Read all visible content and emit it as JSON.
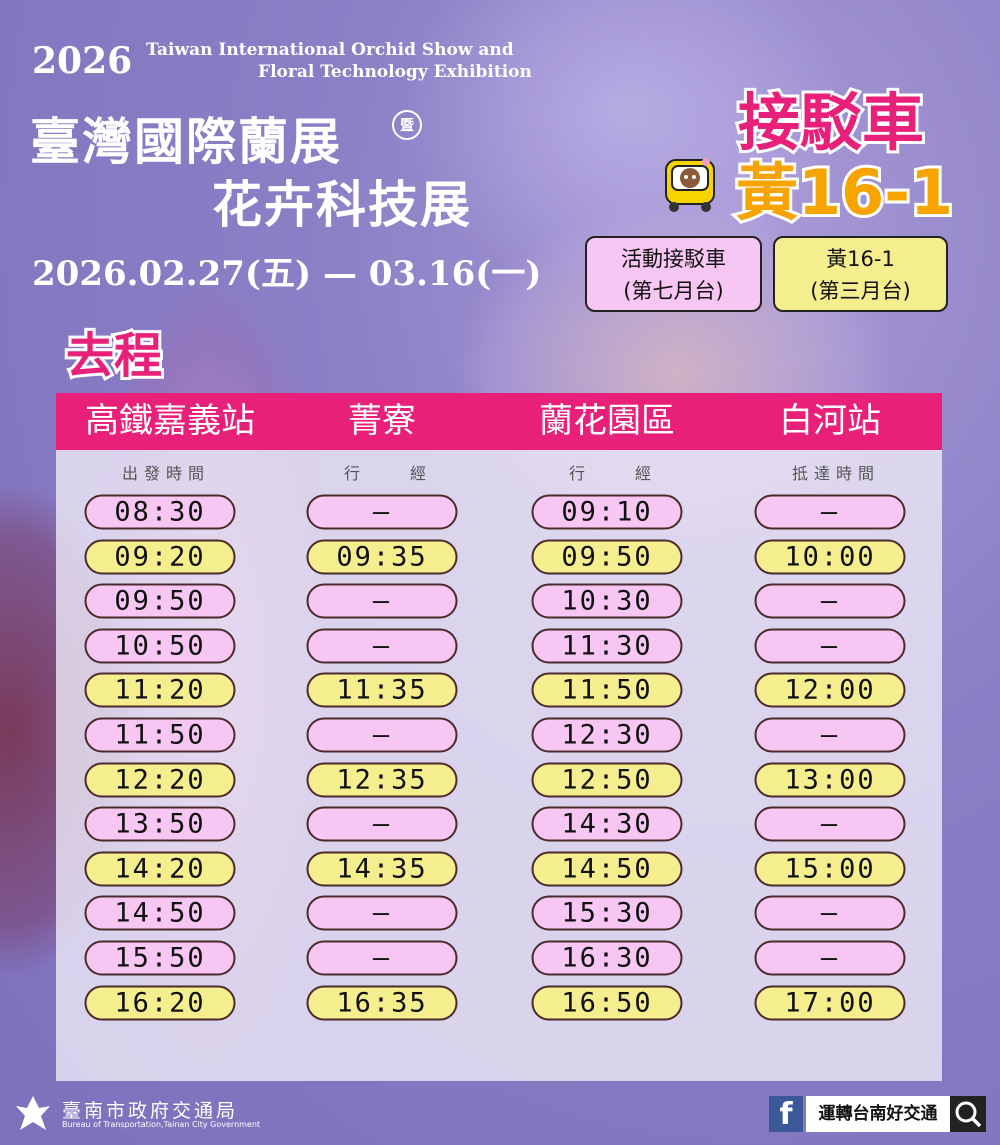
{
  "header": {
    "year": "2026",
    "title_en_line1": "Taiwan International Orchid Show and",
    "title_en_line2": "Floral Technology Exhibition",
    "title_zh_line1": "臺灣國際蘭展",
    "conjunction": "暨",
    "title_zh_line2": "花卉科技展",
    "dates": "2026.02.27(五) — 03.16(一)"
  },
  "shuttle": {
    "title": "接駁車",
    "route": "黃16-1",
    "icon": "bus-mascot-icon",
    "boxes": [
      {
        "line1": "活動接駁車",
        "line2": "(第七月台)",
        "color": "#f8c6f2"
      },
      {
        "line1": "黃16-1",
        "line2": "(第三月台)",
        "color": "#f5ee8e"
      }
    ]
  },
  "direction": "去程",
  "table": {
    "headers": [
      "高鐵嘉義站",
      "菁寮",
      "蘭花園區",
      "白河站"
    ],
    "subheaders": [
      "出發時間",
      "行　　經",
      "行　　經",
      "抵達時間"
    ],
    "colors": {
      "header": "#e8207a",
      "event_shuttle": "#f8c6f2",
      "route_bus": "#f5ee8e"
    },
    "rows": [
      {
        "type": "event_shuttle",
        "times": [
          "08:30",
          "—",
          "09:10",
          "—"
        ]
      },
      {
        "type": "route_bus",
        "times": [
          "09:20",
          "09:35",
          "09:50",
          "10:00"
        ]
      },
      {
        "type": "event_shuttle",
        "times": [
          "09:50",
          "—",
          "10:30",
          "—"
        ]
      },
      {
        "type": "event_shuttle",
        "times": [
          "10:50",
          "—",
          "11:30",
          "—"
        ]
      },
      {
        "type": "route_bus",
        "times": [
          "11:20",
          "11:35",
          "11:50",
          "12:00"
        ]
      },
      {
        "type": "event_shuttle",
        "times": [
          "11:50",
          "—",
          "12:30",
          "—"
        ]
      },
      {
        "type": "route_bus",
        "times": [
          "12:20",
          "12:35",
          "12:50",
          "13:00"
        ]
      },
      {
        "type": "event_shuttle",
        "times": [
          "13:50",
          "—",
          "14:30",
          "—"
        ]
      },
      {
        "type": "route_bus",
        "times": [
          "14:20",
          "14:35",
          "14:50",
          "15:00"
        ]
      },
      {
        "type": "event_shuttle",
        "times": [
          "14:50",
          "—",
          "15:30",
          "—"
        ]
      },
      {
        "type": "event_shuttle",
        "times": [
          "15:50",
          "—",
          "16:30",
          "—"
        ]
      },
      {
        "type": "route_bus",
        "times": [
          "16:20",
          "16:35",
          "16:50",
          "17:00"
        ]
      }
    ]
  },
  "footer": {
    "bureau_zh": "臺南市政府交通局",
    "bureau_en": "Bureau of Transportation,Tainan City Government",
    "facebook_icon": "facebook-icon",
    "facebook_page": "運轉台南好交通",
    "search_icon": "search-icon"
  }
}
